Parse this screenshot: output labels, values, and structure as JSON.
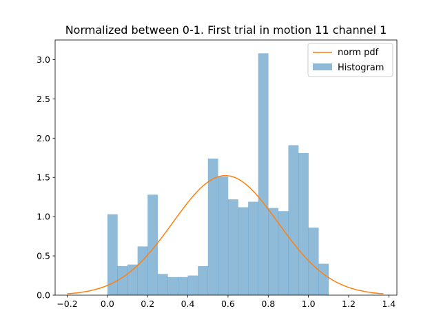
{
  "chart_data": {
    "type": "bar",
    "title": "Normalized between 0-1. First trial in motion 11 channel 1",
    "xlabel": "",
    "ylabel": "",
    "xlim": [
      -0.26,
      1.44
    ],
    "ylim": [
      0,
      3.25
    ],
    "xticks": [
      -0.2,
      0.0,
      0.2,
      0.4,
      0.6,
      0.8,
      1.0,
      1.2,
      1.4
    ],
    "xtick_labels": [
      "−0.2",
      "0.0",
      "0.2",
      "0.4",
      "0.6",
      "0.8",
      "1.0",
      "1.2",
      "1.4"
    ],
    "yticks": [
      0.0,
      0.5,
      1.0,
      1.5,
      2.0,
      2.5,
      3.0
    ],
    "ytick_labels": [
      "0.0",
      "0.5",
      "1.0",
      "1.5",
      "2.0",
      "2.5",
      "3.0"
    ],
    "grid": false,
    "legend_position": "top-right",
    "histogram": {
      "name": "Histogram",
      "color": "#1f77b4",
      "alpha": 0.5,
      "bin_start": 0.0,
      "bin_width": 0.05,
      "values": [
        1.03,
        0.37,
        0.39,
        0.62,
        1.28,
        0.27,
        0.23,
        0.23,
        0.25,
        0.37,
        1.74,
        1.51,
        1.22,
        1.12,
        1.19,
        3.08,
        1.11,
        1.07,
        1.91,
        1.81,
        0.86,
        0.4
      ]
    },
    "norm_pdf": {
      "name": "norm pdf",
      "color": "#ff7f0e",
      "mean": 0.587,
      "std": 0.262,
      "x_range": [
        -0.2,
        1.373
      ]
    }
  }
}
